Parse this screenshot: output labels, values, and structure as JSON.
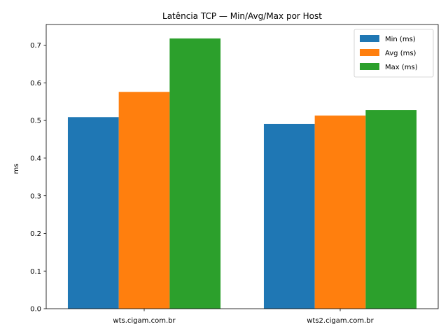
{
  "chart_data": {
    "type": "bar",
    "title": "Latência TCP — Min/Avg/Max por Host",
    "xlabel": "",
    "ylabel": "ms",
    "categories": [
      "wts.cigam.com.br",
      "wts2.cigam.com.br"
    ],
    "series": [
      {
        "name": "Min (ms)",
        "color": "#1f77b4",
        "values": [
          0.509,
          0.491
        ]
      },
      {
        "name": "Avg (ms)",
        "color": "#ff7f0e",
        "values": [
          0.576,
          0.513
        ]
      },
      {
        "name": "Max (ms)",
        "color": "#2ca02c",
        "values": [
          0.718,
          0.528
        ]
      }
    ],
    "ylim": [
      0,
      0.755
    ],
    "yticks": [
      "0.0",
      "0.1",
      "0.2",
      "0.3",
      "0.4",
      "0.5",
      "0.6",
      "0.7"
    ],
    "legend_position": "top-right",
    "grid": false
  }
}
